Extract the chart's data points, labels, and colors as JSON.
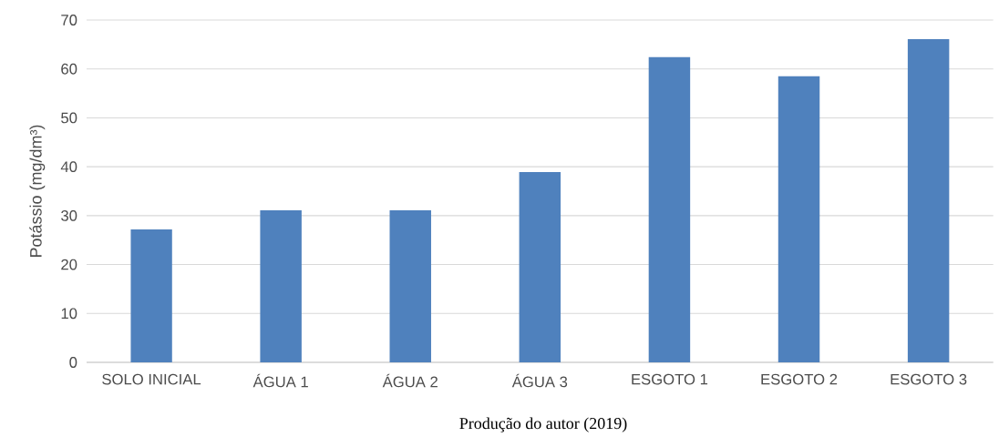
{
  "chart_data": {
    "type": "bar",
    "ylabel": "Potássio (mg/dm³)",
    "categories": [
      "SOLO INICIAL",
      "ÁGUA 1",
      "ÁGUA 2",
      "ÁGUA 3",
      "ESGOTO 1",
      "ESGOTO 2",
      "ESGOTO 3"
    ],
    "values": [
      27.2,
      31.1,
      31.1,
      38.9,
      62.4,
      58.5,
      66.1
    ],
    "color": "#4f81bd",
    "ylim": [
      0,
      70
    ],
    "yticks": [
      0,
      10,
      20,
      30,
      40,
      50,
      60,
      70
    ],
    "grid": "y",
    "annotations": [
      "Produção do autor (2019)"
    ]
  }
}
